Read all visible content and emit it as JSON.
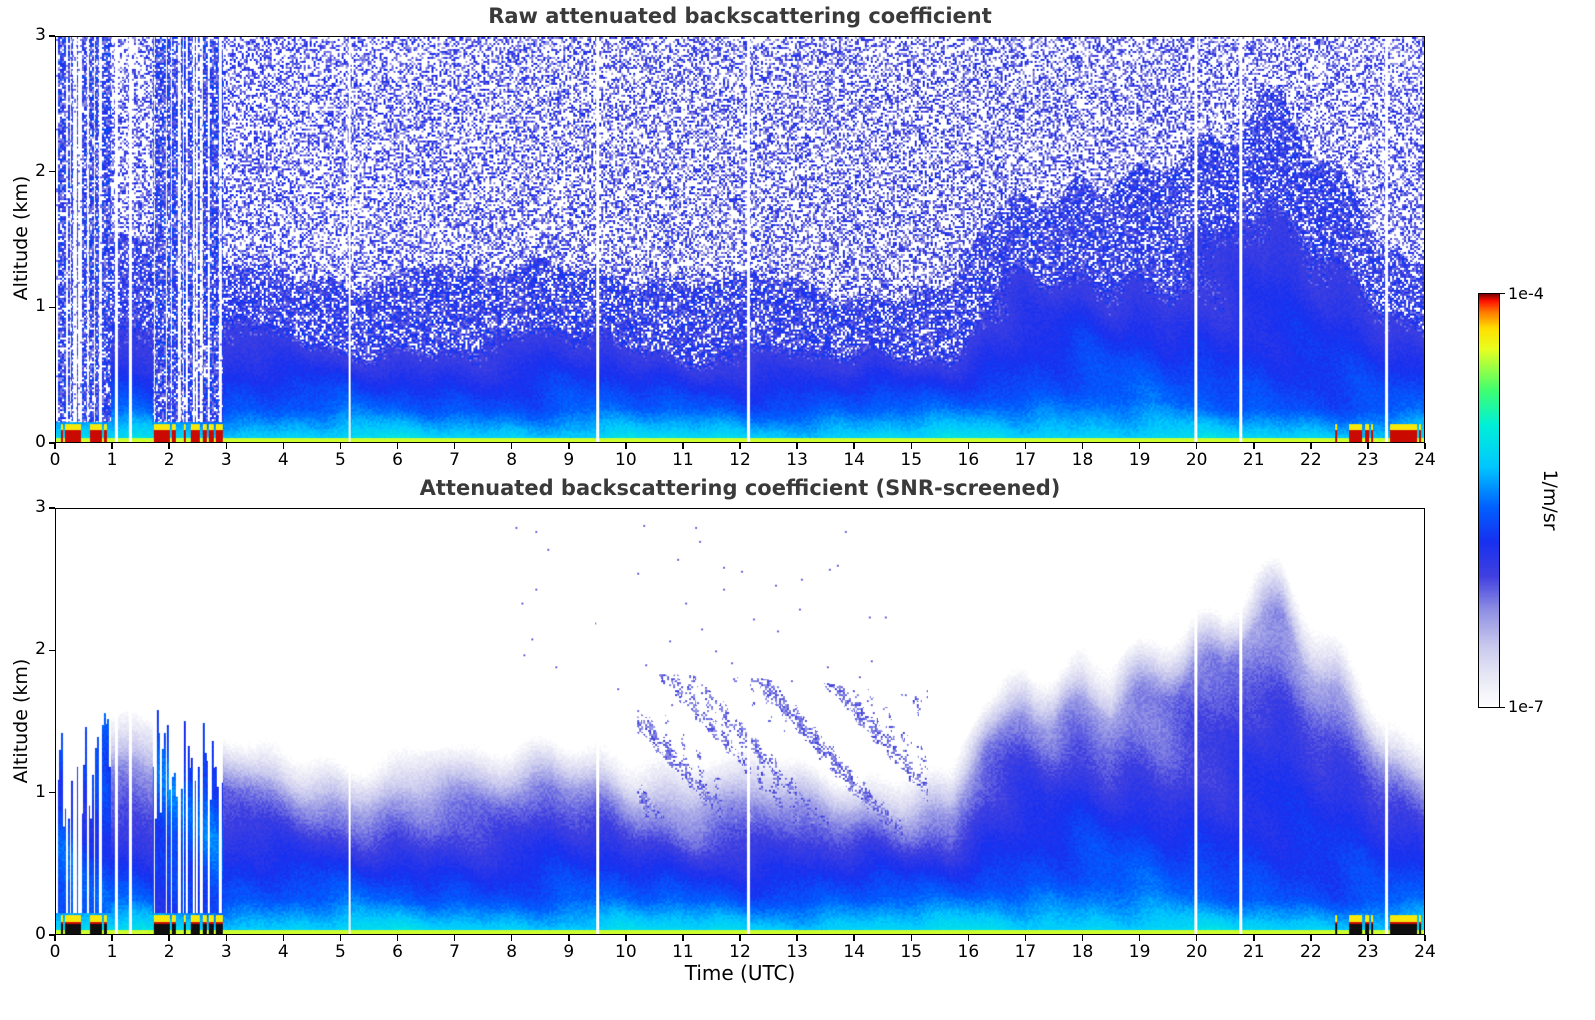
{
  "panels": [
    {
      "title": "Raw attenuated backscattering coefficient",
      "ylabel": "Altitude (km)"
    },
    {
      "title": "Attenuated backscattering coefficient (SNR-screened)",
      "ylabel": "Altitude (km)",
      "xlabel": "Time (UTC)"
    }
  ],
  "colorbar": {
    "max_label": "1e-4",
    "min_label": "1e-7",
    "unit": "1/m/sr"
  },
  "colors": {
    "title": "#3a3a3a",
    "axis": "#000000",
    "background": "#ffffff"
  },
  "chart_data": {
    "type": "heatmap",
    "panels": [
      {
        "title": "Raw attenuated backscattering coefficient",
        "screened": false
      },
      {
        "title": "Attenuated backscattering coefficient (SNR-screened)",
        "screened": true
      }
    ],
    "xlabel": "Time (UTC)",
    "ylabel": "Altitude (km)",
    "xlim": [
      0,
      24
    ],
    "ylim": [
      0,
      3
    ],
    "xticks": [
      0,
      1,
      2,
      3,
      4,
      5,
      6,
      7,
      8,
      9,
      10,
      11,
      12,
      13,
      14,
      15,
      16,
      17,
      18,
      19,
      20,
      21,
      22,
      23,
      24
    ],
    "yticks": [
      0,
      1,
      2,
      3
    ],
    "colorbar": {
      "scale": "log",
      "min": 1e-07,
      "max": 0.0001,
      "unit": "1/m/sr",
      "stops": [
        [
          -7.0,
          "#ffffff"
        ],
        [
          -6.78,
          "#e8e8f6"
        ],
        [
          -6.55,
          "#c8c8ee"
        ],
        [
          -6.3,
          "#9090e4"
        ],
        [
          -6.05,
          "#4040e0"
        ],
        [
          -5.8,
          "#1830f0"
        ],
        [
          -5.55,
          "#0060ff"
        ],
        [
          -5.25,
          "#00c8ff"
        ],
        [
          -4.95,
          "#00f0d8"
        ],
        [
          -4.7,
          "#40ff70"
        ],
        [
          -4.4,
          "#e8ff20"
        ],
        [
          -4.25,
          "#ffe000"
        ],
        [
          -4.13,
          "#ff7800"
        ],
        [
          -4.05,
          "#ff1000"
        ],
        [
          -4.0,
          "#7a0000"
        ]
      ]
    },
    "boundary_layer_top_km": {
      "t": [
        0,
        0.5,
        1,
        1.5,
        2,
        2.5,
        3,
        3.5,
        4,
        5,
        6,
        7,
        8,
        8.7,
        9.3,
        10,
        11,
        12,
        13,
        14,
        15,
        15.7,
        16.3,
        17,
        17.5,
        18,
        18.5,
        19,
        19.5,
        20,
        20.5,
        21,
        21.5,
        22,
        22.5,
        23,
        23.3,
        23.7,
        24
      ],
      "h": [
        1.05,
        1.2,
        1.1,
        1.15,
        1.2,
        1.15,
        1.05,
        0.95,
        0.92,
        0.9,
        0.88,
        0.92,
        1.0,
        1.05,
        0.95,
        0.9,
        0.88,
        0.86,
        0.84,
        0.8,
        0.75,
        0.8,
        1.35,
        1.6,
        1.45,
        1.55,
        1.5,
        1.7,
        1.8,
        1.95,
        1.85,
        2.1,
        2.15,
        1.95,
        1.75,
        1.4,
        1.2,
        1.0,
        0.95
      ]
    },
    "surface_cyan_layer_top_km": 0.25,
    "rain_events_utc": [
      [
        0.0,
        0.97
      ],
      [
        1.7,
        2.93
      ]
    ],
    "fog_events_utc": [
      [
        0.05,
        0.9
      ],
      [
        1.72,
        2.1
      ],
      [
        2.18,
        2.52
      ],
      [
        2.58,
        2.92
      ],
      [
        22.35,
        23.1
      ],
      [
        23.4,
        23.95
      ]
    ],
    "data_gap_times_utc": [
      1.06,
      1.31,
      5.15,
      9.5,
      12.15,
      20.0,
      20.78,
      23.35
    ],
    "mid_cloud_patch_utc": {
      "t": [
        10.2,
        15.3
      ],
      "z": [
        0.85,
        1.75
      ]
    },
    "noise": {
      "speckle_fraction": 0.5,
      "seed": 12345
    }
  }
}
